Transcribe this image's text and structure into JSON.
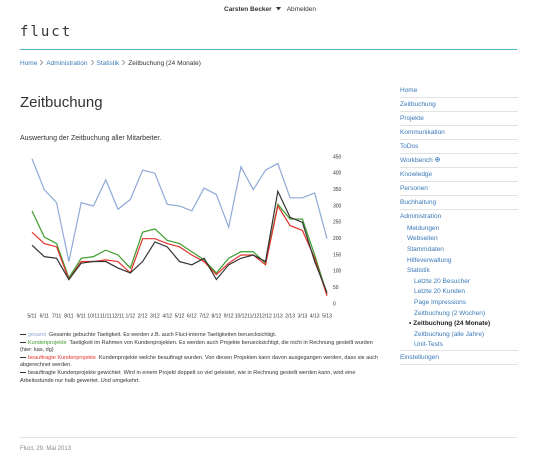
{
  "header": {
    "user": "Carsten Becker",
    "logout": "Abmelden",
    "logo": "fluct"
  },
  "breadcrumb": [
    "Home",
    "Administration",
    "Statistik",
    "Zeitbuchung (24 Monate)"
  ],
  "page": {
    "title": "Zeitbuchung",
    "subtitle": "Auswertung der Zeitbuchung aller Mitarbeiter."
  },
  "chart_data": {
    "type": "line",
    "categories": [
      "5/11",
      "6/11",
      "7/11",
      "8/11",
      "9/11",
      "10/11",
      "11/11",
      "12/11",
      "1/12",
      "2/12",
      "3/12",
      "4/12",
      "5/12",
      "6/12",
      "7/12",
      "8/12",
      "9/12",
      "10/12",
      "11/12",
      "12/12",
      "1/13",
      "2/13",
      "3/13",
      "4/13",
      "5/13"
    ],
    "ylim": [
      0,
      450
    ],
    "yticks": [
      0,
      50,
      100,
      150,
      200,
      250,
      300,
      350,
      400,
      450
    ],
    "grid": false,
    "series": [
      {
        "name": "gesamt",
        "color": "#8fa9d6",
        "description": "Gesamte gebuchte Taetigkeit. Es werden z.B. auch Fluct-interne Taetigkeiten beruecksichtigt.",
        "values": [
          445,
          350,
          310,
          130,
          310,
          300,
          380,
          290,
          320,
          410,
          400,
          305,
          300,
          285,
          355,
          335,
          235,
          420,
          350,
          410,
          430,
          325,
          325,
          340,
          200
        ]
      },
      {
        "name": "Kundenprojekte",
        "color": "#3c9c2c",
        "description": "Taetigkeit im Rahmen von Kundenprojekten. Es werden auch Projekte beruecksichtigt, die nicht in Rechnung gestellt wurden (hier: kas, dg)",
        "values": [
          285,
          205,
          185,
          80,
          140,
          145,
          165,
          150,
          110,
          220,
          230,
          195,
          185,
          160,
          135,
          95,
          140,
          160,
          160,
          125,
          305,
          260,
          260,
          150,
          30
        ]
      },
      {
        "name": "beauftragte Kundenprojekte",
        "color": "#e3342f",
        "description": "Kundenprojekte welche beauftragt wurden. Von diesen Projekten kann davon ausgegangen werden, dass sie auch abgerechnet werden.",
        "values": [
          220,
          185,
          175,
          75,
          130,
          130,
          135,
          130,
          95,
          200,
          200,
          185,
          175,
          150,
          130,
          90,
          125,
          150,
          150,
          120,
          300,
          240,
          225,
          140,
          25
        ]
      },
      {
        "name": "beauftragte Kundenprojekte gewichtet",
        "color": "#333333",
        "description": "Wird in einem Projekt doppelt so viel geleistet, wie in Rechnung gestellt werden kann, wird eine Arbeitsstunde nur halb gewertet. Und umgekehrt.",
        "values": [
          180,
          145,
          140,
          75,
          125,
          130,
          130,
          110,
          95,
          130,
          190,
          175,
          130,
          120,
          140,
          75,
          120,
          140,
          150,
          130,
          345,
          265,
          250,
          130,
          35
        ]
      }
    ]
  },
  "sidebar": [
    {
      "label": "Home"
    },
    {
      "label": "Zeitbuchung"
    },
    {
      "label": "Projekte"
    },
    {
      "label": "Kommunikation"
    },
    {
      "label": "ToDos"
    },
    {
      "label": "Workbench"
    },
    {
      "label": "Knowledge"
    },
    {
      "label": "Personen"
    },
    {
      "label": "Buchhaltung"
    },
    {
      "label": "Administration",
      "children": [
        {
          "label": "Meldungen"
        },
        {
          "label": "Webseiten"
        },
        {
          "label": "Stammdaten"
        },
        {
          "label": "Hilfeverwaltung"
        },
        {
          "label": "Statistik",
          "children": [
            {
              "label": "Letzte 20 Besucher"
            },
            {
              "label": "Letzte 20 Kunden"
            },
            {
              "label": "Page Impressions"
            },
            {
              "label": "Zeitbuchung (2 Wochen)"
            },
            {
              "label": "Zeitbuchung (24 Monate)",
              "active": true
            },
            {
              "label": "Zeitbuchung (alle Jahre)"
            },
            {
              "label": "Unit-Tests"
            }
          ]
        }
      ]
    },
    {
      "label": "Einstellungen"
    }
  ],
  "footer": "Fluct, 29. Mai 2013"
}
